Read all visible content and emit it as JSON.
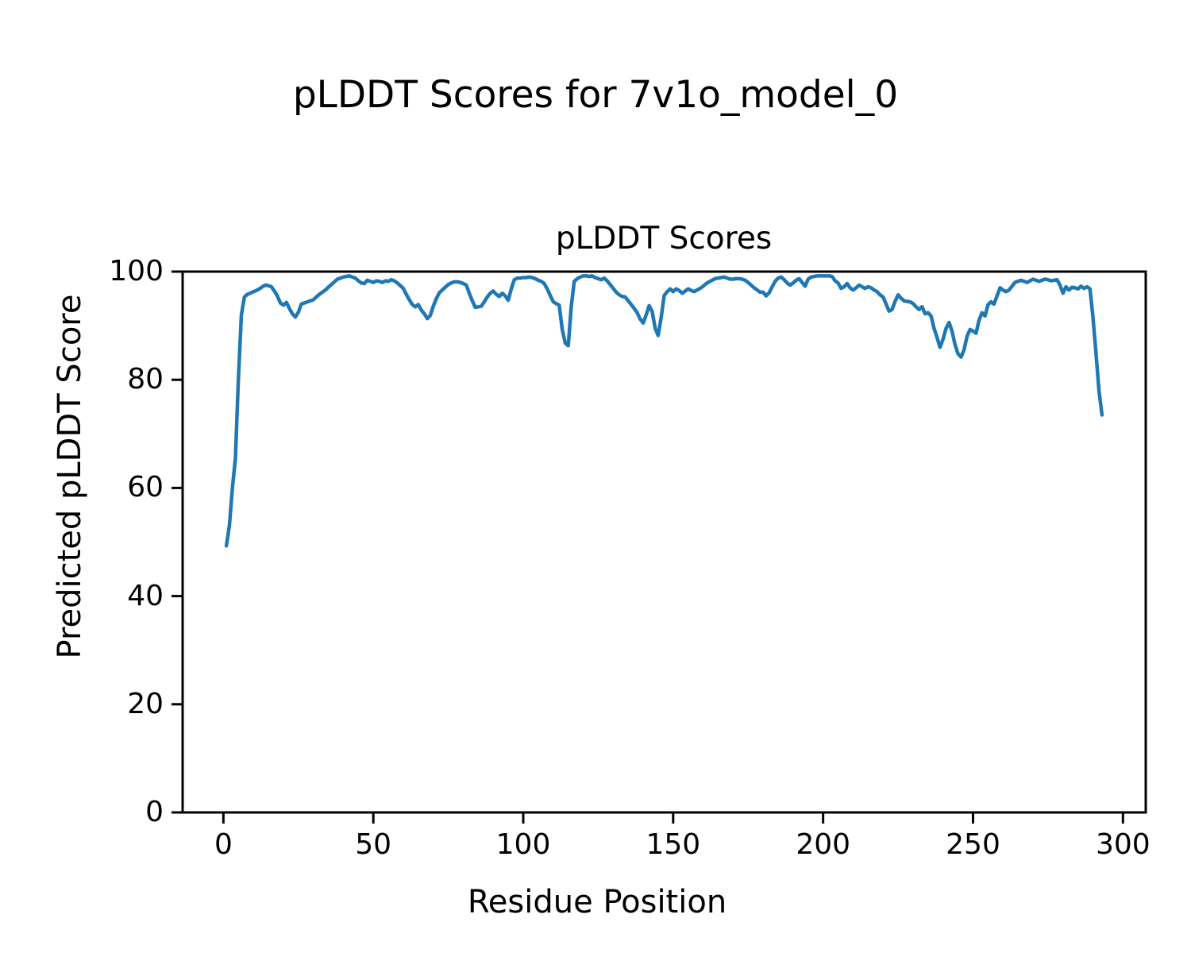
{
  "figure": {
    "suptitle": "pLDDT Scores for 7v1o_model_0",
    "axes_title": "pLDDT Scores",
    "xlabel": "Residue Position",
    "ylabel": "Predicted pLDDT Score"
  },
  "colors": {
    "line": "#1f77b4",
    "axis": "#000000",
    "background": "#ffffff",
    "text": "#000000"
  },
  "chart_data": {
    "type": "line",
    "title": "pLDDT Scores",
    "xlabel": "Residue Position",
    "ylabel": "Predicted pLDDT Score",
    "xlim": [
      -13.6,
      307.6
    ],
    "ylim": [
      0,
      100
    ],
    "xticks": [
      0,
      50,
      100,
      150,
      200,
      250,
      300
    ],
    "yticks": [
      0,
      20,
      40,
      60,
      80,
      100
    ],
    "grid": false,
    "legend": null,
    "series": [
      {
        "name": "pLDDT",
        "x_start": 1,
        "x_step": 1,
        "y": [
          49.3,
          53.0,
          60.0,
          65.5,
          80.0,
          92.0,
          95.3,
          95.8,
          96.0,
          96.3,
          96.5,
          96.8,
          97.2,
          97.5,
          97.4,
          97.2,
          96.4,
          95.5,
          94.2,
          93.8,
          94.3,
          93.2,
          92.2,
          91.6,
          92.5,
          94.0,
          94.2,
          94.4,
          94.6,
          94.8,
          95.3,
          95.8,
          96.2,
          96.6,
          97.1,
          97.6,
          98.1,
          98.6,
          98.8,
          99.0,
          99.1,
          99.2,
          99.0,
          98.8,
          98.3,
          97.9,
          97.8,
          98.4,
          98.2,
          98.0,
          98.3,
          98.2,
          98.0,
          98.3,
          98.2,
          98.5,
          98.3,
          97.9,
          97.4,
          96.9,
          95.8,
          94.8,
          93.9,
          93.5,
          93.9,
          92.9,
          92.2,
          91.3,
          91.9,
          93.6,
          95.0,
          96.1,
          96.6,
          97.1,
          97.6,
          97.9,
          98.1,
          98.1,
          98.0,
          97.8,
          97.5,
          96.0,
          94.6,
          93.4,
          93.5,
          93.6,
          94.4,
          95.3,
          96.0,
          96.4,
          95.8,
          95.4,
          96.0,
          95.5,
          94.7,
          96.8,
          98.5,
          98.8,
          98.8,
          98.9,
          98.9,
          99.0,
          98.9,
          98.7,
          98.4,
          98.2,
          97.8,
          96.8,
          95.6,
          94.4,
          94.1,
          93.8,
          89.3,
          86.8,
          86.3,
          93.5,
          98.2,
          98.7,
          99.0,
          99.2,
          99.2,
          99.1,
          99.2,
          98.9,
          98.7,
          98.5,
          98.8,
          98.3,
          97.6,
          96.9,
          96.2,
          95.7,
          95.4,
          95.3,
          94.6,
          93.9,
          93.2,
          92.4,
          91.2,
          90.5,
          92.0,
          93.7,
          92.6,
          89.5,
          88.2,
          91.5,
          95.6,
          96.3,
          96.8,
          96.3,
          96.8,
          96.5,
          96.0,
          96.4,
          96.8,
          96.5,
          96.3,
          96.6,
          96.9,
          97.3,
          97.8,
          98.1,
          98.4,
          98.7,
          98.8,
          98.9,
          99.0,
          98.8,
          98.6,
          98.6,
          98.7,
          98.7,
          98.6,
          98.4,
          98.0,
          97.5,
          97.0,
          96.6,
          96.2,
          96.2,
          95.5,
          96.1,
          97.2,
          98.2,
          98.8,
          99.0,
          98.5,
          97.9,
          97.5,
          97.9,
          98.4,
          98.7,
          98.0,
          97.3,
          98.6,
          99.0,
          99.1,
          99.2,
          99.2,
          99.2,
          99.2,
          99.2,
          99.1,
          98.3,
          97.9,
          96.9,
          97.2,
          97.8,
          97.0,
          96.6,
          97.0,
          97.5,
          97.2,
          96.9,
          97.2,
          97.0,
          96.6,
          96.3,
          95.7,
          95.3,
          94.0,
          92.7,
          93.0,
          94.5,
          95.7,
          95.1,
          94.6,
          94.5,
          94.4,
          94.1,
          93.5,
          93.0,
          93.5,
          92.2,
          92.4,
          91.8,
          89.5,
          87.8,
          86.0,
          87.5,
          89.5,
          90.6,
          89.0,
          86.5,
          84.8,
          84.2,
          85.5,
          88.0,
          89.3,
          89.0,
          88.6,
          91.0,
          92.4,
          91.8,
          93.9,
          94.4,
          94.0,
          95.5,
          97.0,
          96.6,
          96.3,
          96.6,
          97.3,
          98.0,
          98.2,
          98.4,
          98.2,
          98.0,
          98.3,
          98.6,
          98.4,
          98.2,
          98.4,
          98.6,
          98.5,
          98.3,
          98.4,
          98.5,
          97.5,
          96.0,
          97.2,
          96.6,
          97.1,
          97.0,
          96.8,
          97.3,
          96.9,
          97.2,
          96.8,
          91.6,
          85.0,
          78.0,
          73.5
        ]
      }
    ]
  }
}
